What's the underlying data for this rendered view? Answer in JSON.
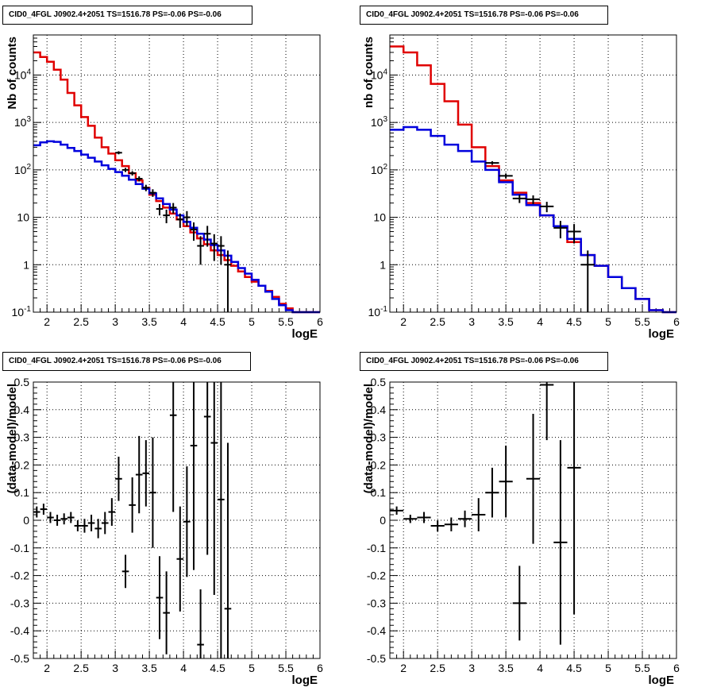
{
  "panels": [
    {
      "title": "CID0_4FGL J0902.4+2051 TS=1516.78 PS=-0.06 PS=-0.06",
      "xlabel": "logE",
      "ylabel": "Nb of counts"
    },
    {
      "title": "CID0_4FGL J0902.4+2051 TS=1516.78 PS=-0.06 PS=-0.06",
      "xlabel": "logE",
      "ylabel": "nb of counts"
    },
    {
      "title": "CID0_4FGL J0902.4+2051 TS=1516.78 PS=-0.06 PS=-0.06",
      "xlabel": "logE",
      "ylabel": "(data-model)/model"
    },
    {
      "title": "CID0_4FGL J0902.4+2051 TS=1516.78 PS=-0.06 PS=-0.06",
      "xlabel": "logE",
      "ylabel": "(data-model)/model"
    }
  ],
  "chart_data": [
    {
      "type": "line",
      "title": "CID0_4FGL J0902.4+2051 TS=1516.78 PS=-0.06 PS=-0.06",
      "xlabel": "logE",
      "ylabel": "Nb of counts",
      "xlim": [
        1.8,
        6.0
      ],
      "ylim": [
        0.1,
        70000
      ],
      "yscale": "log",
      "grid": true,
      "colors": {
        "total_model": "#e00000",
        "source_model": "#0000dd",
        "data": "#000000"
      },
      "x_ticks": [
        "2",
        "2.5",
        "3",
        "3.5",
        "4",
        "4.5",
        "5",
        "5.5",
        "6"
      ],
      "y_ticks": [
        "10^-1",
        "1",
        "10",
        "10^2",
        "10^3",
        "10^4"
      ],
      "step_bin_width": 0.1,
      "series": [
        {
          "kind": "step",
          "color": "red",
          "x": [
            1.8,
            1.9,
            2.0,
            2.1,
            2.2,
            2.3,
            2.4,
            2.5,
            2.6,
            2.7,
            2.8,
            2.9,
            3.0,
            3.1,
            3.2,
            3.3,
            3.4,
            3.5,
            3.6,
            3.7,
            3.8,
            3.9,
            4.0,
            4.1,
            4.2,
            4.3,
            4.4,
            4.5,
            4.6,
            4.7,
            4.8,
            4.9,
            5.0,
            5.1,
            5.2,
            5.3,
            5.4,
            5.5,
            5.6,
            5.7,
            5.8,
            5.9
          ],
          "values": [
            30000,
            24000,
            19000,
            13000,
            8000,
            4200,
            2300,
            1300,
            850,
            480,
            300,
            220,
            160,
            120,
            85,
            60,
            42,
            30,
            22,
            16,
            12,
            9,
            6.5,
            4.8,
            3.6,
            2.7,
            2.0,
            1.6,
            1.25,
            0.95,
            0.72,
            0.55,
            0.44,
            0.36,
            0.28,
            0.21,
            0.15,
            0.12,
            0.1,
            0.1,
            0.1,
            0.1
          ]
        },
        {
          "kind": "step",
          "color": "blue",
          "x": [
            1.8,
            1.9,
            2.0,
            2.1,
            2.2,
            2.3,
            2.4,
            2.5,
            2.6,
            2.7,
            2.8,
            2.9,
            3.0,
            3.1,
            3.2,
            3.3,
            3.4,
            3.5,
            3.6,
            3.7,
            3.8,
            3.9,
            4.0,
            4.1,
            4.2,
            4.3,
            4.4,
            4.5,
            4.6,
            4.7,
            4.8,
            4.9,
            5.0,
            5.1,
            5.2,
            5.3,
            5.4,
            5.5,
            5.6,
            5.7,
            5.8,
            5.9
          ],
          "values": [
            330,
            380,
            400,
            390,
            340,
            290,
            250,
            210,
            180,
            150,
            125,
            105,
            90,
            75,
            62,
            50,
            40,
            32,
            25,
            19,
            14.5,
            11,
            8,
            6,
            4.5,
            3.4,
            2.6,
            2.0,
            1.55,
            1.15,
            0.85,
            0.65,
            0.48,
            0.36,
            0.27,
            0.19,
            0.14,
            0.11,
            0.1,
            0.1,
            0.1,
            0.1
          ]
        },
        {
          "kind": "errorbars",
          "color": "black",
          "x": [
            3.05,
            3.15,
            3.25,
            3.35,
            3.45,
            3.55,
            3.65,
            3.75,
            3.85,
            3.95,
            4.05,
            4.15,
            4.25,
            4.35,
            4.45,
            4.55,
            4.65
          ],
          "values": [
            230,
            100,
            85,
            65,
            42,
            33,
            15,
            11,
            16,
            9,
            10,
            5.5,
            2.5,
            4.5,
            2.8,
            2.5,
            1.0
          ],
          "errors_low": [
            17,
            10,
            9,
            8,
            6.5,
            6,
            4,
            3.5,
            4,
            3,
            3.5,
            2.3,
            1.5,
            2.1,
            1.6,
            1.5,
            1.0
          ],
          "errors_high": [
            17,
            10,
            9,
            8,
            6.5,
            6,
            4,
            3.5,
            4,
            3,
            3.5,
            2.3,
            1.5,
            2.1,
            1.6,
            1.5,
            1.0
          ]
        }
      ]
    },
    {
      "type": "line",
      "title": "CID0_4FGL J0902.4+2051 TS=1516.78 PS=-0.06 PS=-0.06",
      "xlabel": "logE",
      "ylabel": "nb of counts",
      "xlim": [
        1.8,
        6.0
      ],
      "ylim": [
        0.1,
        70000
      ],
      "yscale": "log",
      "grid": true,
      "colors": {
        "total_model": "#e00000",
        "source_model": "#0000dd",
        "data": "#000000"
      },
      "x_ticks": [
        "2",
        "2.5",
        "3",
        "3.5",
        "4",
        "4.5",
        "5",
        "5.5",
        "6"
      ],
      "y_ticks": [
        "10^-1",
        "1",
        "10",
        "10^2",
        "10^3",
        "10^4"
      ],
      "step_bin_width": 0.2,
      "series": [
        {
          "kind": "step",
          "color": "red",
          "x": [
            1.8,
            2.0,
            2.2,
            2.4,
            2.6,
            2.8,
            3.0,
            3.2,
            3.4,
            3.6,
            3.8,
            4.0,
            4.2,
            4.4,
            4.6,
            4.8,
            5.0,
            5.2,
            5.4,
            5.6,
            5.8
          ],
          "values": [
            40000,
            30000,
            16000,
            6500,
            2800,
            900,
            300,
            120,
            60,
            33,
            20,
            11,
            6.5,
            3.0,
            1.6,
            0.95,
            0.55,
            0.32,
            0.19,
            0.11,
            0.1
          ]
        },
        {
          "kind": "step",
          "color": "blue",
          "x": [
            1.8,
            2.0,
            2.2,
            2.4,
            2.6,
            2.8,
            3.0,
            3.2,
            3.4,
            3.6,
            3.8,
            4.0,
            4.2,
            4.4,
            4.6,
            4.8,
            5.0,
            5.2,
            5.4,
            5.6,
            5.8
          ],
          "values": [
            700,
            800,
            700,
            520,
            340,
            250,
            150,
            100,
            55,
            30,
            18,
            11,
            6.5,
            3.5,
            1.6,
            0.95,
            0.55,
            0.32,
            0.19,
            0.11,
            0.1
          ]
        },
        {
          "kind": "errorbars",
          "color": "black",
          "x": [
            3.3,
            3.5,
            3.7,
            3.9,
            4.1,
            4.3,
            4.5,
            4.7
          ],
          "values": [
            140,
            75,
            25,
            24,
            17,
            6,
            5,
            1.0
          ],
          "errors_low": [
            12,
            9,
            5,
            5,
            4.2,
            2.4,
            2.2,
            1.0
          ],
          "errors_high": [
            12,
            9,
            5,
            5,
            4.2,
            2.4,
            2.2,
            1.0
          ]
        }
      ]
    },
    {
      "type": "scatter",
      "title": "CID0_4FGL J0902.4+2051 TS=1516.78 PS=-0.06 PS=-0.06",
      "xlabel": "logE",
      "ylabel": "(data-model)/model",
      "xlim": [
        1.8,
        6.0
      ],
      "ylim": [
        -0.5,
        0.5
      ],
      "grid": true,
      "x_ticks": [
        "2",
        "2.5",
        "3",
        "3.5",
        "4",
        "4.5",
        "5",
        "5.5",
        "6"
      ],
      "y_ticks": [
        "-0.5",
        "-0.4",
        "-0.3",
        "-0.2",
        "-0.1",
        "0",
        "0.1",
        "0.2",
        "0.3",
        "0.4",
        "0.5"
      ],
      "bin_width": 0.1,
      "series": [
        {
          "kind": "errorbars",
          "color": "black",
          "x": [
            1.85,
            1.95,
            2.05,
            2.15,
            2.25,
            2.35,
            2.45,
            2.55,
            2.65,
            2.75,
            2.85,
            2.95,
            3.05,
            3.15,
            3.25,
            3.35,
            3.45,
            3.55,
            3.65,
            3.75,
            3.85,
            3.95,
            4.05,
            4.15,
            4.25,
            4.35,
            4.45,
            4.55,
            4.65
          ],
          "values": [
            0.03,
            0.04,
            0.01,
            0.0,
            0.005,
            0.01,
            -0.02,
            -0.02,
            -0.01,
            -0.03,
            -0.01,
            0.03,
            0.15,
            -0.185,
            0.055,
            0.165,
            0.17,
            0.1,
            -0.28,
            -0.335,
            0.38,
            -0.14,
            -0.005,
            0.27,
            -0.45,
            0.375,
            0.28,
            0.075,
            -0.32
          ],
          "errors_low": [
            0.02,
            0.02,
            0.02,
            0.02,
            0.02,
            0.02,
            0.02,
            0.025,
            0.03,
            0.035,
            0.04,
            0.05,
            0.08,
            0.06,
            0.1,
            0.14,
            0.12,
            0.2,
            0.15,
            0.15,
            0.35,
            0.19,
            0.2,
            0.45,
            0.2,
            0.5,
            0.55,
            0.6,
            0.6
          ],
          "errors_high": [
            0.02,
            0.02,
            0.02,
            0.02,
            0.02,
            0.02,
            0.02,
            0.025,
            0.03,
            0.035,
            0.04,
            0.05,
            0.08,
            0.06,
            0.1,
            0.14,
            0.12,
            0.2,
            0.15,
            0.15,
            0.35,
            0.19,
            0.2,
            0.45,
            0.2,
            0.5,
            0.55,
            0.6,
            0.6
          ]
        }
      ]
    },
    {
      "type": "scatter",
      "title": "CID0_4FGL J0902.4+2051 TS=1516.78 PS=-0.06 PS=-0.06",
      "xlabel": "logE",
      "ylabel": "(data-model)/model",
      "xlim": [
        1.8,
        6.0
      ],
      "ylim": [
        -0.5,
        0.5
      ],
      "grid": true,
      "x_ticks": [
        "2",
        "2.5",
        "3",
        "3.5",
        "4",
        "4.5",
        "5",
        "5.5",
        "6"
      ],
      "y_ticks": [
        "-0.5",
        "-0.4",
        "-0.3",
        "-0.2",
        "-0.1",
        "0",
        "0.1",
        "0.2",
        "0.3",
        "0.4",
        "0.5"
      ],
      "bin_width": 0.2,
      "series": [
        {
          "kind": "errorbars",
          "color": "black",
          "x": [
            1.9,
            2.1,
            2.3,
            2.5,
            2.7,
            2.9,
            3.1,
            3.3,
            3.5,
            3.7,
            3.9,
            4.1,
            4.3,
            4.5
          ],
          "values": [
            0.035,
            0.005,
            0.01,
            -0.02,
            -0.015,
            0.005,
            0.02,
            0.1,
            0.14,
            -0.3,
            0.15,
            0.49,
            -0.08,
            0.19
          ],
          "errors_low": [
            0.015,
            0.015,
            0.02,
            0.02,
            0.025,
            0.03,
            0.06,
            0.09,
            0.13,
            0.135,
            0.235,
            0.2,
            0.37,
            0.53
          ],
          "errors_high": [
            0.015,
            0.015,
            0.02,
            0.02,
            0.025,
            0.03,
            0.06,
            0.09,
            0.13,
            0.135,
            0.235,
            0.2,
            0.37,
            0.53
          ]
        }
      ]
    }
  ]
}
